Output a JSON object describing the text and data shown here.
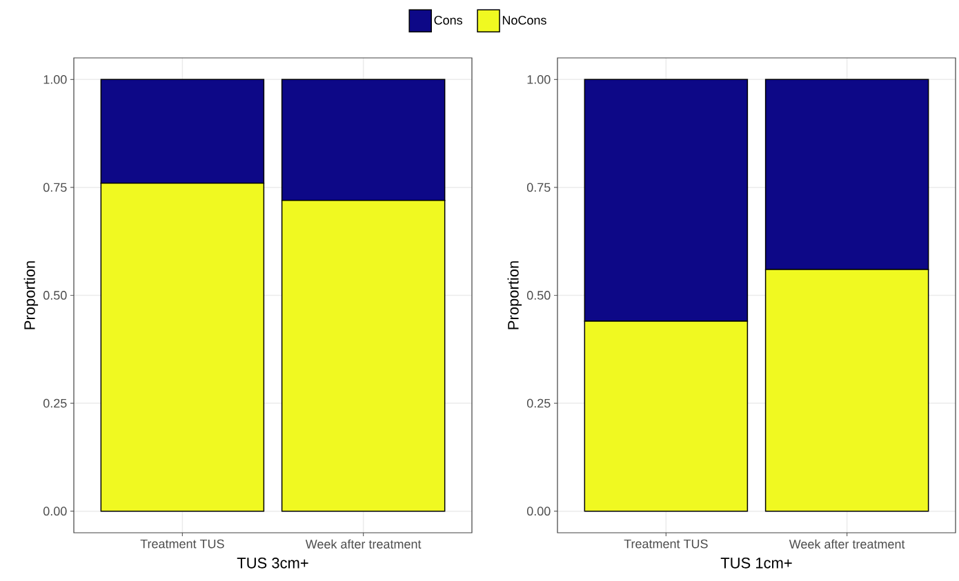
{
  "chart_data": [
    {
      "type": "bar",
      "stacked": true,
      "categories": [
        "Treatment TUS",
        "Week after treatment"
      ],
      "xlabel": "TUS 3cm+",
      "ylabel": "Proportion",
      "ylim": [
        -0.05,
        1.05
      ],
      "yticks": [
        {
          "value": 0,
          "label": "0.00"
        },
        {
          "value": 0.25,
          "label": "0.25"
        },
        {
          "value": 0.5,
          "label": "0.50"
        },
        {
          "value": 0.75,
          "label": "0.75"
        },
        {
          "value": 1,
          "label": "1.00"
        }
      ],
      "grid": true,
      "legend": "top",
      "series": [
        {
          "name": "NoCons",
          "color": "#f0f921",
          "values": [
            0.76,
            0.72
          ]
        },
        {
          "name": "Cons",
          "color": "#0d0887",
          "values": [
            0.24,
            0.28
          ]
        }
      ]
    },
    {
      "type": "bar",
      "stacked": true,
      "categories": [
        "Treatment TUS",
        "Week after treatment"
      ],
      "xlabel": "TUS 1cm+",
      "ylabel": "Proportion",
      "ylim": [
        -0.05,
        1.05
      ],
      "yticks": [
        {
          "value": 0,
          "label": "0.00"
        },
        {
          "value": 0.25,
          "label": "0.25"
        },
        {
          "value": 0.5,
          "label": "0.50"
        },
        {
          "value": 0.75,
          "label": "0.75"
        },
        {
          "value": 1,
          "label": "1.00"
        }
      ],
      "grid": true,
      "series": [
        {
          "color": "#f0f921",
          "values": [
            0.44,
            0.56
          ]
        },
        {
          "color": "#0d0887",
          "values": [
            0.56,
            0.44
          ]
        }
      ]
    }
  ]
}
